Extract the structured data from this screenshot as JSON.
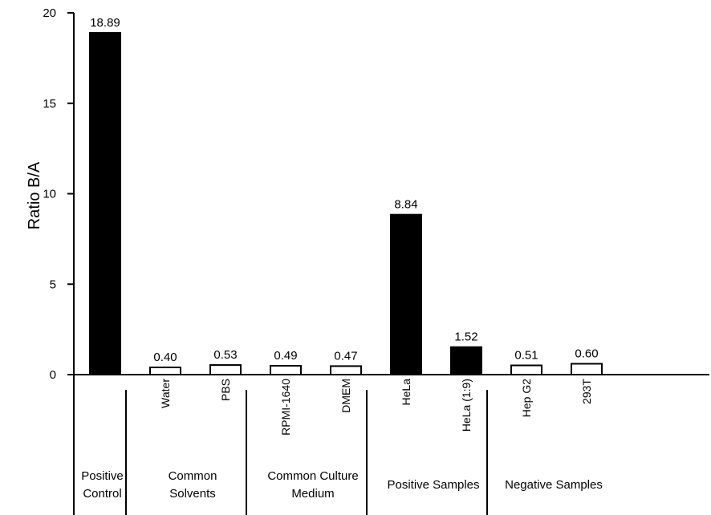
{
  "chart_data": {
    "type": "bar",
    "ylabel": "Ratio B/A",
    "ylim": [
      0,
      20
    ],
    "yticks": [
      0,
      5,
      10,
      15,
      20
    ],
    "categories": [
      "",
      "Water",
      "PBS",
      "RPMI-1640",
      "DMEM",
      "HeLa",
      "HeLa (1:9)",
      "Hep G2",
      "293T"
    ],
    "values": [
      18.89,
      0.4,
      0.53,
      0.49,
      0.47,
      8.84,
      1.52,
      0.51,
      0.6
    ],
    "value_labels": [
      "18.89",
      "0.40",
      "0.53",
      "0.49",
      "0.47",
      "8.84",
      "1.52",
      "0.51",
      "0.60"
    ],
    "fills": [
      "black",
      "white",
      "white",
      "white",
      "white",
      "black",
      "black",
      "white",
      "white"
    ],
    "groups": [
      {
        "label_lines": [
          "Positive",
          "Control"
        ],
        "categories": 1
      },
      {
        "label_lines": [
          "Common",
          "Solvents"
        ],
        "categories": 2
      },
      {
        "label_lines": [
          "Common Culture",
          "Medium"
        ],
        "categories": 2
      },
      {
        "label_lines": [
          "Positive Samples"
        ],
        "categories": 2
      },
      {
        "label_lines": [
          "Negative Samples"
        ],
        "categories": 2
      }
    ]
  },
  "colors": {
    "black": "#000000",
    "white": "#ffffff",
    "axis": "#000000"
  }
}
